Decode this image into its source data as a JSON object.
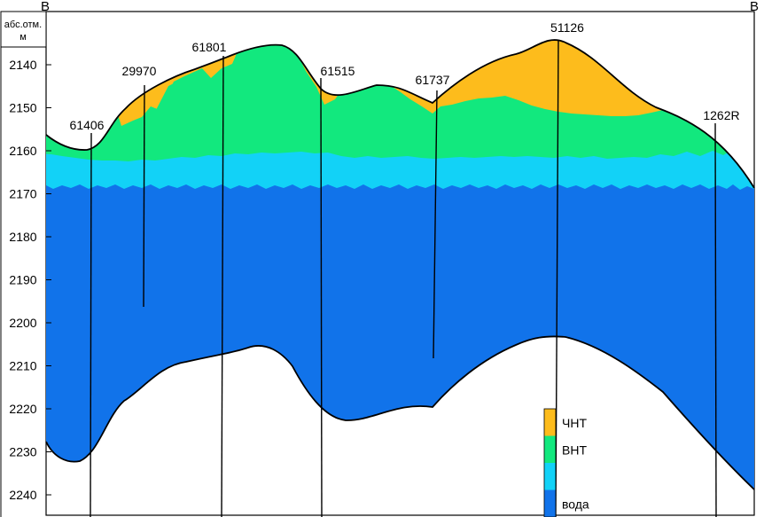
{
  "section": {
    "left_label": "В",
    "right_label": "В",
    "axis_title_line1": "абс.отм.",
    "axis_title_line2": "м",
    "y_ticks": [
      "2140",
      "2150",
      "2160",
      "2170",
      "2180",
      "2190",
      "2200",
      "2210",
      "2220",
      "2230",
      "2240"
    ],
    "wells": [
      {
        "name": "61406"
      },
      {
        "name": "29970"
      },
      {
        "name": "61801"
      },
      {
        "name": "61515"
      },
      {
        "name": "61737"
      },
      {
        "name": "51126"
      },
      {
        "name": "1262R"
      }
    ]
  },
  "legend": {
    "items": [
      {
        "label": "ЧНТ",
        "color": "#FDBC1C"
      },
      {
        "label": "ВНТ",
        "color": "#12E87E"
      },
      {
        "label": "",
        "color": "#12D2F7"
      },
      {
        "label": "вода",
        "color": "#1173EA"
      }
    ]
  },
  "colors": {
    "oil_heavy": "#FDBC1C",
    "oil_light": "#12E87E",
    "transition": "#12D2F7",
    "water": "#1173EA",
    "outline": "#000000"
  }
}
